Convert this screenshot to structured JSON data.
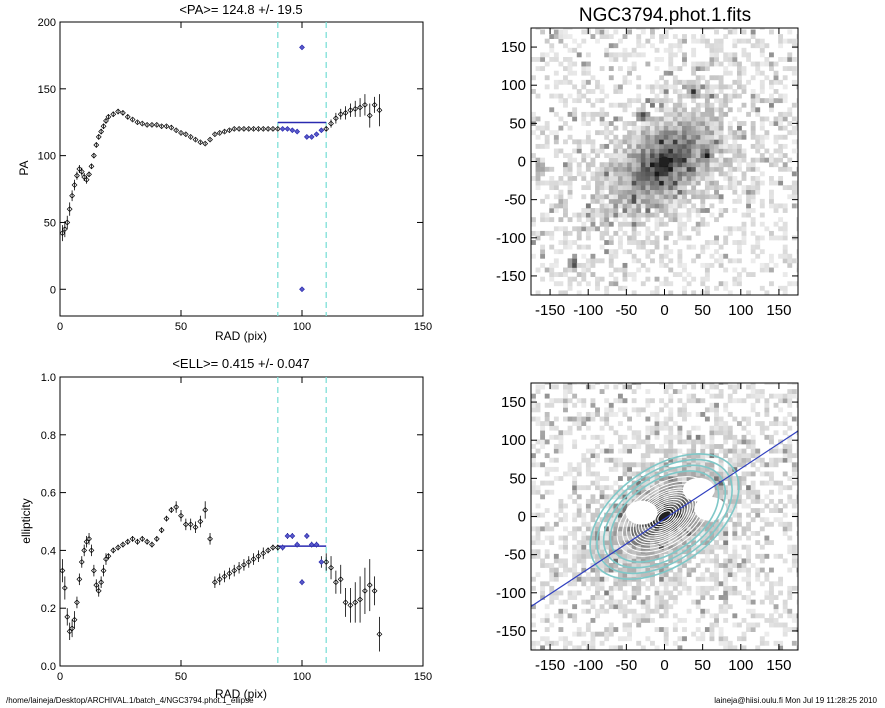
{
  "footer": {
    "path": "/home/laineja/Desktop/ARCHIVAL.1/batch_4/NGC3794.phot.1_ellipse",
    "stamp": "laineja@hiisi.oulu.fi  Mon Jul 19 11:28:25 2010"
  },
  "colors": {
    "fit_line": "#2a2ab0",
    "selected_point": "#5a5ac8",
    "window_line": "#7fe0d8",
    "contour_outer": "#7fc8c8",
    "contour_inner": "#ffffff",
    "profile_line": "#3040c0"
  },
  "chart_data": [
    {
      "type": "scatter",
      "title": "<PA>= 124.8 +/-  19.5",
      "xlabel": "RAD (pix)",
      "ylabel": "PA",
      "xlim": [
        0,
        150
      ],
      "ylim": [
        -20,
        200
      ],
      "xticks": [
        0,
        50,
        100,
        150
      ],
      "yticks": [
        0,
        50,
        100,
        150,
        200
      ],
      "window": [
        90,
        110
      ],
      "mean": 124.8,
      "err": 19.5,
      "points": [
        [
          1,
          42,
          6
        ],
        [
          2,
          45,
          6
        ],
        [
          3,
          50,
          5
        ],
        [
          4,
          60,
          5
        ],
        [
          5,
          70,
          4
        ],
        [
          6,
          78,
          4
        ],
        [
          7,
          85,
          3
        ],
        [
          8,
          90,
          3
        ],
        [
          9,
          88,
          3
        ],
        [
          10,
          84,
          3
        ],
        [
          11,
          82,
          3
        ],
        [
          12,
          86,
          2
        ],
        [
          13,
          92,
          2
        ],
        [
          14,
          100,
          2
        ],
        [
          15,
          108,
          2
        ],
        [
          16,
          114,
          2
        ],
        [
          17,
          118,
          2
        ],
        [
          18,
          122,
          2
        ],
        [
          19,
          126,
          2
        ],
        [
          20,
          129,
          2
        ],
        [
          22,
          131,
          2
        ],
        [
          24,
          133,
          2
        ],
        [
          26,
          132,
          2
        ],
        [
          28,
          129,
          2
        ],
        [
          30,
          127,
          1
        ],
        [
          32,
          125,
          1
        ],
        [
          34,
          124,
          1
        ],
        [
          36,
          123,
          1
        ],
        [
          38,
          123,
          1
        ],
        [
          40,
          123,
          1
        ],
        [
          42,
          122,
          1
        ],
        [
          44,
          122,
          1
        ],
        [
          46,
          121,
          1
        ],
        [
          48,
          119,
          1
        ],
        [
          50,
          117,
          1
        ],
        [
          52,
          116,
          1
        ],
        [
          54,
          114,
          1
        ],
        [
          56,
          112,
          1
        ],
        [
          58,
          110,
          1
        ],
        [
          60,
          109,
          1
        ],
        [
          62,
          112,
          1
        ],
        [
          64,
          116,
          1
        ],
        [
          66,
          117,
          1
        ],
        [
          68,
          118,
          1
        ],
        [
          70,
          119,
          1
        ],
        [
          72,
          120,
          1
        ],
        [
          74,
          120,
          1
        ],
        [
          76,
          120,
          1
        ],
        [
          78,
          120,
          1
        ],
        [
          80,
          120,
          1
        ],
        [
          82,
          120,
          1
        ],
        [
          84,
          120,
          1
        ],
        [
          86,
          120,
          1
        ],
        [
          88,
          120,
          1
        ],
        [
          90,
          120,
          1
        ],
        [
          92,
          120,
          1
        ],
        [
          94,
          120,
          1
        ],
        [
          96,
          119,
          1
        ],
        [
          98,
          118,
          1
        ],
        [
          100,
          0,
          1
        ],
        [
          100,
          181,
          1
        ],
        [
          102,
          114,
          1
        ],
        [
          104,
          114,
          1
        ],
        [
          106,
          116,
          1
        ],
        [
          108,
          119,
          1
        ],
        [
          110,
          120,
          2
        ],
        [
          112,
          124,
          3
        ],
        [
          114,
          128,
          4
        ],
        [
          116,
          131,
          4
        ],
        [
          118,
          132,
          5
        ],
        [
          120,
          134,
          5
        ],
        [
          122,
          135,
          6
        ],
        [
          124,
          136,
          7
        ],
        [
          126,
          138,
          8
        ],
        [
          128,
          130,
          9
        ],
        [
          130,
          138,
          6
        ],
        [
          132,
          134,
          12
        ]
      ]
    },
    {
      "type": "scatter",
      "title": "<ELL>= 0.415 +/-  0.047",
      "xlabel": "RAD (pix)",
      "ylabel": "ellipticity",
      "xlim": [
        0,
        150
      ],
      "ylim": [
        0.0,
        1.0
      ],
      "xticks": [
        0,
        50,
        100,
        150
      ],
      "yticks": [
        0.0,
        0.2,
        0.4,
        0.6,
        0.8,
        1.0
      ],
      "window": [
        90,
        110
      ],
      "mean": 0.415,
      "err": 0.047,
      "points": [
        [
          1,
          0.33,
          0.04
        ],
        [
          2,
          0.27,
          0.04
        ],
        [
          3,
          0.17,
          0.03
        ],
        [
          4,
          0.12,
          0.03
        ],
        [
          5,
          0.13,
          0.03
        ],
        [
          6,
          0.16,
          0.03
        ],
        [
          7,
          0.22,
          0.02
        ],
        [
          8,
          0.3,
          0.02
        ],
        [
          9,
          0.36,
          0.02
        ],
        [
          10,
          0.4,
          0.02
        ],
        [
          11,
          0.43,
          0.02
        ],
        [
          12,
          0.44,
          0.02
        ],
        [
          13,
          0.4,
          0.02
        ],
        [
          14,
          0.33,
          0.02
        ],
        [
          15,
          0.28,
          0.02
        ],
        [
          16,
          0.26,
          0.02
        ],
        [
          17,
          0.29,
          0.02
        ],
        [
          18,
          0.33,
          0.02
        ],
        [
          19,
          0.37,
          0.02
        ],
        [
          20,
          0.38,
          0.01
        ],
        [
          22,
          0.4,
          0.01
        ],
        [
          24,
          0.41,
          0.01
        ],
        [
          26,
          0.42,
          0.01
        ],
        [
          28,
          0.43,
          0.01
        ],
        [
          30,
          0.44,
          0.01
        ],
        [
          32,
          0.43,
          0.01
        ],
        [
          34,
          0.44,
          0.01
        ],
        [
          36,
          0.43,
          0.01
        ],
        [
          38,
          0.42,
          0.01
        ],
        [
          40,
          0.44,
          0.01
        ],
        [
          42,
          0.47,
          0.01
        ],
        [
          44,
          0.51,
          0.01
        ],
        [
          46,
          0.54,
          0.01
        ],
        [
          48,
          0.55,
          0.02
        ],
        [
          50,
          0.52,
          0.02
        ],
        [
          52,
          0.49,
          0.02
        ],
        [
          54,
          0.49,
          0.02
        ],
        [
          56,
          0.48,
          0.02
        ],
        [
          58,
          0.5,
          0.02
        ],
        [
          60,
          0.54,
          0.03
        ],
        [
          62,
          0.44,
          0.02
        ],
        [
          64,
          0.29,
          0.02
        ],
        [
          66,
          0.3,
          0.02
        ],
        [
          68,
          0.31,
          0.02
        ],
        [
          70,
          0.32,
          0.02
        ],
        [
          72,
          0.33,
          0.02
        ],
        [
          74,
          0.34,
          0.02
        ],
        [
          76,
          0.35,
          0.02
        ],
        [
          78,
          0.36,
          0.02
        ],
        [
          80,
          0.37,
          0.02
        ],
        [
          82,
          0.38,
          0.02
        ],
        [
          84,
          0.39,
          0.02
        ],
        [
          86,
          0.4,
          0.01
        ],
        [
          88,
          0.41,
          0.01
        ],
        [
          90,
          0.41,
          0.01
        ],
        [
          92,
          0.41,
          0.01
        ],
        [
          94,
          0.45,
          0.01
        ],
        [
          96,
          0.45,
          0.01
        ],
        [
          98,
          0.42,
          0.01
        ],
        [
          100,
          0.29,
          0.01
        ],
        [
          102,
          0.45,
          0.01
        ],
        [
          104,
          0.42,
          0.01
        ],
        [
          106,
          0.42,
          0.01
        ],
        [
          108,
          0.36,
          0.02
        ],
        [
          110,
          0.36,
          0.03
        ],
        [
          112,
          0.34,
          0.04
        ],
        [
          114,
          0.29,
          0.04
        ],
        [
          116,
          0.3,
          0.05
        ],
        [
          118,
          0.22,
          0.05
        ],
        [
          120,
          0.21,
          0.06
        ],
        [
          122,
          0.22,
          0.07
        ],
        [
          124,
          0.23,
          0.08
        ],
        [
          126,
          0.26,
          0.08
        ],
        [
          128,
          0.28,
          0.09
        ],
        [
          130,
          0.26,
          0.05
        ],
        [
          132,
          0.11,
          0.06
        ]
      ]
    },
    {
      "type": "heatmap",
      "title": "NGC3794.phot.1.fits",
      "xlim": [
        -175,
        175
      ],
      "ylim": [
        -175,
        175
      ],
      "xticks": [
        -150,
        -100,
        -50,
        0,
        50,
        100,
        150
      ],
      "yticks": [
        -150,
        -100,
        -50,
        0,
        50,
        100,
        150
      ],
      "galaxy": {
        "pa": 124.8,
        "ell": 0.415,
        "core": [
          0,
          0
        ],
        "stars": [
          [
            55,
            8
          ],
          [
            38,
            92
          ],
          [
            -28,
            60
          ],
          [
            -162,
            -8
          ],
          [
            -120,
            -135
          ]
        ]
      }
    },
    {
      "type": "heatmap",
      "title": "",
      "xlim": [
        -175,
        175
      ],
      "ylim": [
        -175,
        175
      ],
      "xticks": [
        -150,
        -100,
        -50,
        0,
        50,
        100,
        150
      ],
      "yticks": [
        -150,
        -100,
        -50,
        0,
        50,
        100,
        150
      ],
      "galaxy": {
        "pa": 124.8,
        "ell": 0.415,
        "core": [
          0,
          0
        ]
      },
      "mask": [
        [
          60,
          10
        ],
        [
          45,
          35
        ],
        [
          -30,
          5
        ]
      ],
      "profile_line": [
        [
          -175,
          -118
        ],
        [
          175,
          112
        ]
      ],
      "contour_radii": [
        10,
        14,
        18,
        22,
        26,
        30,
        34,
        38,
        42,
        46,
        50,
        56,
        62,
        70,
        80,
        90,
        100,
        110
      ]
    }
  ]
}
